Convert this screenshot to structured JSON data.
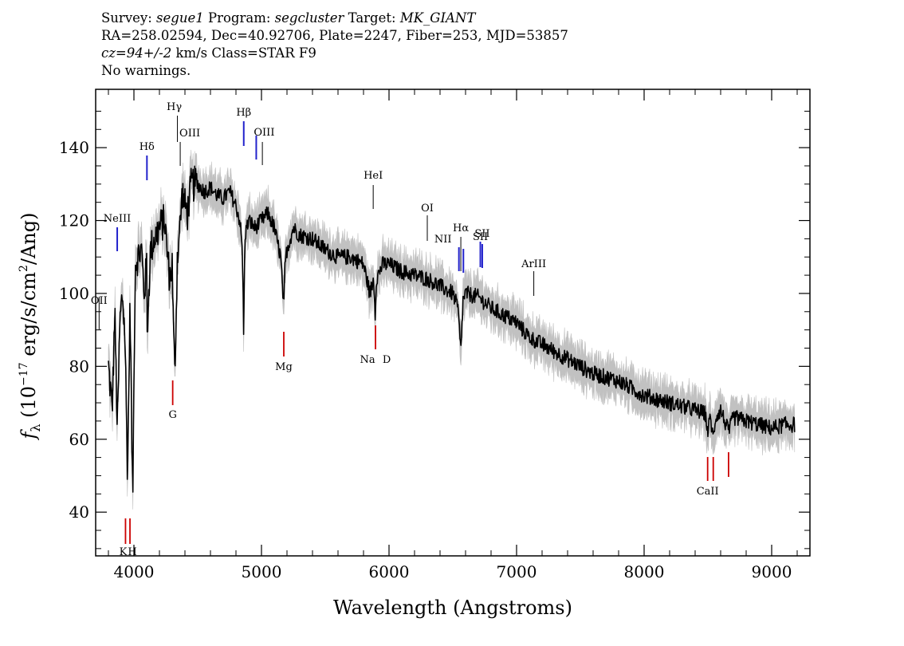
{
  "header": {
    "survey_label": "Survey:",
    "survey": "segue1",
    "program_label": "Program:",
    "program": "segcluster",
    "target_label": "Target:",
    "target": "MK_GIANT",
    "line2": "RA=258.02594, Dec=40.92706, Plate=2247, Fiber=253, MJD=53857",
    "cz_value": "cz=94+/-2",
    "cz_rest": " km/s Class=STAR F9",
    "line4": "No warnings."
  },
  "chart_data": {
    "type": "line",
    "xlabel": "Wavelength (Angstroms)",
    "ylabel_prefix": "f",
    "ylabel_sub": "λ",
    "ylabel_main": " (10",
    "ylabel_exp": "−17",
    "ylabel_mid": " erg/s/cm",
    "ylabel_exp2": "2",
    "ylabel_end": "/Ang)",
    "xlim": [
      3700,
      9300
    ],
    "ylim": [
      28,
      156
    ],
    "xticks": [
      4000,
      5000,
      6000,
      7000,
      8000,
      9000
    ],
    "xtick_labels": [
      "4000",
      "5000",
      "6000",
      "7000",
      "8000",
      "9000"
    ],
    "yticks": [
      40,
      60,
      80,
      100,
      120,
      140
    ],
    "ytick_labels": [
      "40",
      "60",
      "80",
      "100",
      "120",
      "140"
    ],
    "series": [
      {
        "color": "#000000",
        "noise_color": "#bbbbbb",
        "x": [
          3800,
          3830,
          3850,
          3870,
          3890,
          3910,
          3930,
          3950,
          3970,
          3990,
          4010,
          4030,
          4060,
          4080,
          4100,
          4102,
          4130,
          4160,
          4200,
          4240,
          4280,
          4300,
          4310,
          4320,
          4330,
          4340,
          4360,
          4380,
          4400,
          4420,
          4450,
          4500,
          4550,
          4600,
          4650,
          4700,
          4750,
          4800,
          4830,
          4850,
          4861,
          4870,
          4900,
          4950,
          5000,
          5050,
          5100,
          5150,
          5175,
          5185,
          5200,
          5250,
          5300,
          5400,
          5500,
          5600,
          5700,
          5800,
          5850,
          5880,
          5893,
          5900,
          5950,
          6000,
          6100,
          6200,
          6300,
          6400,
          6500,
          6540,
          6563,
          6580,
          6600,
          6700,
          6800,
          6900,
          7000,
          7100,
          7200,
          7300,
          7400,
          7500,
          7600,
          7700,
          7800,
          7900,
          8000,
          8100,
          8200,
          8300,
          8400,
          8480,
          8498,
          8520,
          8542,
          8560,
          8600,
          8662,
          8700,
          8800,
          8900,
          9000,
          9100,
          9180
        ],
        "y": [
          80,
          68,
          95,
          62,
          92,
          100,
          88,
          50,
          98,
          42,
          108,
          110,
          112,
          100,
          108,
          88,
          112,
          115,
          118,
          120,
          104,
          108,
          90,
          78,
          92,
          110,
          118,
          128,
          124,
          122,
          130,
          130,
          128,
          129,
          127,
          126,
          128,
          124,
          120,
          112,
          88,
          116,
          120,
          118,
          120,
          122,
          118,
          110,
          96,
          108,
          112,
          118,
          116,
          115,
          112,
          110,
          110,
          108,
          100,
          104,
          94,
          104,
          108,
          108,
          106,
          105,
          104,
          102,
          100,
          96,
          84,
          98,
          100,
          99,
          96,
          94,
          92,
          88,
          86,
          84,
          82,
          80,
          78,
          77,
          76,
          74,
          72,
          71,
          70,
          69,
          68,
          67,
          62,
          66,
          60,
          66,
          68,
          62,
          66,
          65,
          64,
          63,
          64,
          64
        ]
      }
    ],
    "emission_lines": [
      {
        "label": "OII",
        "x": 3727,
        "type": "emission"
      },
      {
        "label": "NeIII",
        "x": 3869,
        "type": "emission"
      },
      {
        "label": "Hδ",
        "x": 4102,
        "type": "emission"
      },
      {
        "label": "Hγ",
        "x": 4341,
        "type": "emission"
      },
      {
        "label": "OIII",
        "x": 4363,
        "type": "emission"
      },
      {
        "label": "Hβ",
        "x": 4861,
        "type": "emission"
      },
      {
        "label": "OIII",
        "x": 4959,
        "type": "emission"
      },
      {
        "label": "OIII",
        "x": 5007,
        "type": "emission"
      },
      {
        "label": "HeI",
        "x": 5876,
        "type": "emission"
      },
      {
        "label": "OI",
        "x": 6300,
        "type": "emission"
      },
      {
        "label": "NII",
        "x": 6548,
        "type": "emission"
      },
      {
        "label": "Hα",
        "x": 6563,
        "type": "emission"
      },
      {
        "label": "NII",
        "x": 6583,
        "type": "emission"
      },
      {
        "label": "SII",
        "x": 6716,
        "type": "emission"
      },
      {
        "label": "SII",
        "x": 6731,
        "type": "emission"
      },
      {
        "label": "ArIII",
        "x": 7135,
        "type": "emission"
      }
    ],
    "absorption_lines": [
      {
        "label": "K",
        "x": 3934
      },
      {
        "label": "H",
        "x": 3969
      },
      {
        "label": "G",
        "x": 4304
      },
      {
        "label": "Mg",
        "x": 5175
      },
      {
        "label": "Na",
        "x": 5894
      },
      {
        "label": "D",
        "x": 5894
      },
      {
        "label": "CaII",
        "x": 8498
      },
      {
        "label": "CaII",
        "x": 8542
      },
      {
        "label": "CaII",
        "x": 8662
      }
    ]
  }
}
